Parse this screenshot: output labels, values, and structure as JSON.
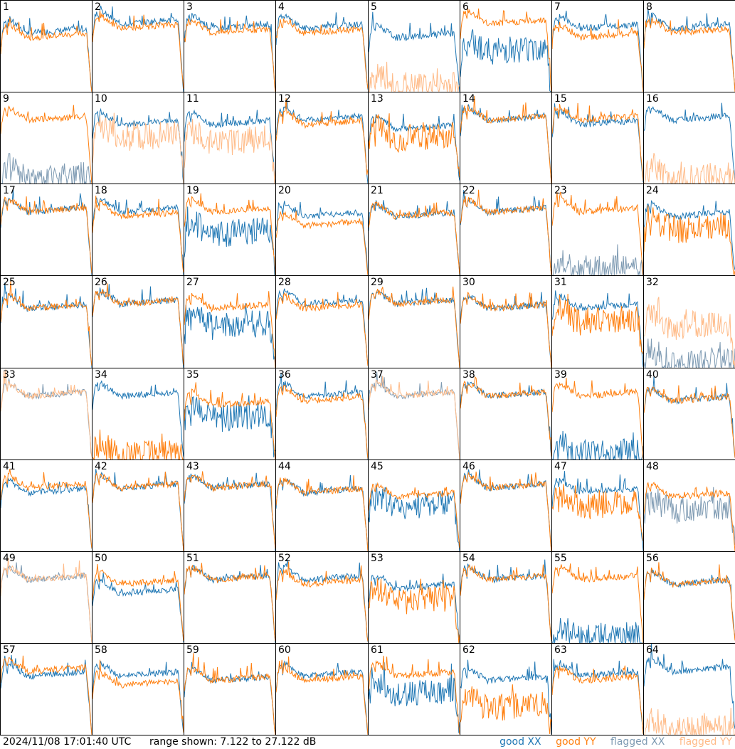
{
  "chart_data": {
    "type": "line",
    "description_units": "dB",
    "grid": {
      "rows": 8,
      "cols": 8
    },
    "timestamp": "2024/11/08 17:01:40 UTC",
    "range_text": "range shown: 7.122 to 27.122 dB",
    "ylim": [
      7.122,
      27.122
    ],
    "legend": [
      {
        "label": "good XX",
        "color": "#1f77b4"
      },
      {
        "label": "good YY",
        "color": "#ff7f0e"
      },
      {
        "label": "flagged XX",
        "color": "#7f9bb3"
      },
      {
        "label": "flagged YY",
        "color": "#ffbb88"
      }
    ],
    "panels": [
      {
        "label": "1",
        "xx": "good",
        "yy": "good",
        "xx_level": 20,
        "yy_level": 19
      },
      {
        "label": "2",
        "xx": "good",
        "yy": "good",
        "xx_level": 22,
        "yy_level": 21
      },
      {
        "label": "3",
        "xx": "good",
        "yy": "good",
        "xx_level": 21,
        "yy_level": 20
      },
      {
        "label": "4",
        "xx": "good",
        "yy": "good",
        "xx_level": 21,
        "yy_level": 20
      },
      {
        "label": "5",
        "xx": "good",
        "yy": "flagged",
        "xx_level": 19,
        "yy_level": 8
      },
      {
        "label": "6",
        "xx": "good",
        "yy": "good",
        "xx_level": 16,
        "yy_level": 22
      },
      {
        "label": "7",
        "xx": "good",
        "yy": "good",
        "xx_level": 21,
        "yy_level": 19
      },
      {
        "label": "8",
        "xx": "good",
        "yy": "good",
        "xx_level": 21,
        "yy_level": 20
      },
      {
        "label": "9",
        "xx": "flagged",
        "yy": "good",
        "xx_level": 8,
        "yy_level": 21
      },
      {
        "label": "10",
        "xx": "good",
        "yy": "flagged",
        "xx_level": 20,
        "yy_level": 17
      },
      {
        "label": "11",
        "xx": "good",
        "yy": "flagged",
        "xx_level": 20,
        "yy_level": 16
      },
      {
        "label": "12",
        "xx": "good",
        "yy": "good",
        "xx_level": 21,
        "yy_level": 20
      },
      {
        "label": "13",
        "xx": "good",
        "yy": "good",
        "xx_level": 19,
        "yy_level": 17
      },
      {
        "label": "14",
        "xx": "good",
        "yy": "good",
        "xx_level": 21,
        "yy_level": 21
      },
      {
        "label": "15",
        "xx": "good",
        "yy": "good",
        "xx_level": 20,
        "yy_level": 21
      },
      {
        "label": "16",
        "xx": "good",
        "yy": "flagged",
        "xx_level": 21,
        "yy_level": 8
      },
      {
        "label": "17",
        "xx": "good",
        "yy": "good",
        "xx_level": 21,
        "yy_level": 21
      },
      {
        "label": "18",
        "xx": "good",
        "yy": "good",
        "xx_level": 21,
        "yy_level": 20
      },
      {
        "label": "19",
        "xx": "good",
        "yy": "good",
        "xx_level": 16,
        "yy_level": 21
      },
      {
        "label": "20",
        "xx": "good",
        "yy": "good",
        "xx_level": 20,
        "yy_level": 18
      },
      {
        "label": "21",
        "xx": "good",
        "yy": "good",
        "xx_level": 20,
        "yy_level": 20
      },
      {
        "label": "22",
        "xx": "good",
        "yy": "good",
        "xx_level": 21,
        "yy_level": 21
      },
      {
        "label": "23",
        "xx": "flagged",
        "yy": "good",
        "xx_level": 8,
        "yy_level": 21
      },
      {
        "label": "24",
        "xx": "good",
        "yy": "good",
        "xx_level": 20,
        "yy_level": 17
      },
      {
        "label": "25",
        "xx": "good",
        "yy": "good",
        "xx_level": 20,
        "yy_level": 20
      },
      {
        "label": "26",
        "xx": "good",
        "yy": "good",
        "xx_level": 21,
        "yy_level": 21
      },
      {
        "label": "27",
        "xx": "good",
        "yy": "good",
        "xx_level": 16,
        "yy_level": 20
      },
      {
        "label": "28",
        "xx": "good",
        "yy": "good",
        "xx_level": 21,
        "yy_level": 20
      },
      {
        "label": "29",
        "xx": "good",
        "yy": "good",
        "xx_level": 21,
        "yy_level": 21
      },
      {
        "label": "30",
        "xx": "good",
        "yy": "good",
        "xx_level": 20,
        "yy_level": 20
      },
      {
        "label": "31",
        "xx": "good",
        "yy": "good",
        "xx_level": 20,
        "yy_level": 17
      },
      {
        "label": "32",
        "xx": "flagged",
        "yy": "flagged",
        "xx_level": 8,
        "yy_level": 16
      },
      {
        "label": "33",
        "xx": "flagged",
        "yy": "flagged",
        "xx_level": 21,
        "yy_level": 21
      },
      {
        "label": "34",
        "xx": "good",
        "yy": "good",
        "xx_level": 21,
        "yy_level": 8
      },
      {
        "label": "35",
        "xx": "good",
        "yy": "good",
        "xx_level": 16,
        "yy_level": 19
      },
      {
        "label": "36",
        "xx": "good",
        "yy": "good",
        "xx_level": 21,
        "yy_level": 20
      },
      {
        "label": "37",
        "xx": "flagged",
        "yy": "flagged",
        "xx_level": 21,
        "yy_level": 21
      },
      {
        "label": "38",
        "xx": "good",
        "yy": "good",
        "xx_level": 21,
        "yy_level": 21
      },
      {
        "label": "39",
        "xx": "good",
        "yy": "good",
        "xx_level": 8,
        "yy_level": 21
      },
      {
        "label": "40",
        "xx": "good",
        "yy": "good",
        "xx_level": 20,
        "yy_level": 20
      },
      {
        "label": "41",
        "xx": "good",
        "yy": "good",
        "xx_level": 20,
        "yy_level": 21
      },
      {
        "label": "42",
        "xx": "good",
        "yy": "good",
        "xx_level": 21,
        "yy_level": 21
      },
      {
        "label": "43",
        "xx": "good",
        "yy": "good",
        "xx_level": 21,
        "yy_level": 21
      },
      {
        "label": "44",
        "xx": "good",
        "yy": "good",
        "xx_level": 20,
        "yy_level": 20
      },
      {
        "label": "45",
        "xx": "good",
        "yy": "good",
        "xx_level": 17,
        "yy_level": 19
      },
      {
        "label": "46",
        "xx": "good",
        "yy": "good",
        "xx_level": 21,
        "yy_level": 21
      },
      {
        "label": "47",
        "xx": "good",
        "yy": "good",
        "xx_level": 20,
        "yy_level": 17
      },
      {
        "label": "48",
        "xx": "flagged",
        "yy": "good",
        "xx_level": 16,
        "yy_level": 19
      },
      {
        "label": "49",
        "xx": "flagged",
        "yy": "flagged",
        "xx_level": 21,
        "yy_level": 21
      },
      {
        "label": "50",
        "xx": "good",
        "yy": "good",
        "xx_level": 18,
        "yy_level": 20
      },
      {
        "label": "51",
        "xx": "good",
        "yy": "good",
        "xx_level": 21,
        "yy_level": 21
      },
      {
        "label": "52",
        "xx": "good",
        "yy": "good",
        "xx_level": 21,
        "yy_level": 20
      },
      {
        "label": "53",
        "xx": "good",
        "yy": "good",
        "xx_level": 19,
        "yy_level": 16
      },
      {
        "label": "54",
        "xx": "good",
        "yy": "good",
        "xx_level": 21,
        "yy_level": 21
      },
      {
        "label": "55",
        "xx": "good",
        "yy": "good",
        "xx_level": 8,
        "yy_level": 21
      },
      {
        "label": "56",
        "xx": "good",
        "yy": "good",
        "xx_level": 20,
        "yy_level": 20
      },
      {
        "label": "57",
        "xx": "good",
        "yy": "good",
        "xx_level": 20,
        "yy_level": 21
      },
      {
        "label": "58",
        "xx": "good",
        "yy": "good",
        "xx_level": 20,
        "yy_level": 18
      },
      {
        "label": "59",
        "xx": "good",
        "yy": "good",
        "xx_level": 19,
        "yy_level": 19
      },
      {
        "label": "60",
        "xx": "good",
        "yy": "good",
        "xx_level": 20,
        "yy_level": 19
      },
      {
        "label": "61",
        "xx": "good",
        "yy": "good",
        "xx_level": 16,
        "yy_level": 20
      },
      {
        "label": "62",
        "xx": "good",
        "yy": "good",
        "xx_level": 19,
        "yy_level": 13
      },
      {
        "label": "63",
        "xx": "good",
        "yy": "good",
        "xx_level": 20,
        "yy_level": 19
      },
      {
        "label": "64",
        "xx": "good",
        "yy": "flagged",
        "xx_level": 21,
        "yy_level": 8
      }
    ]
  }
}
